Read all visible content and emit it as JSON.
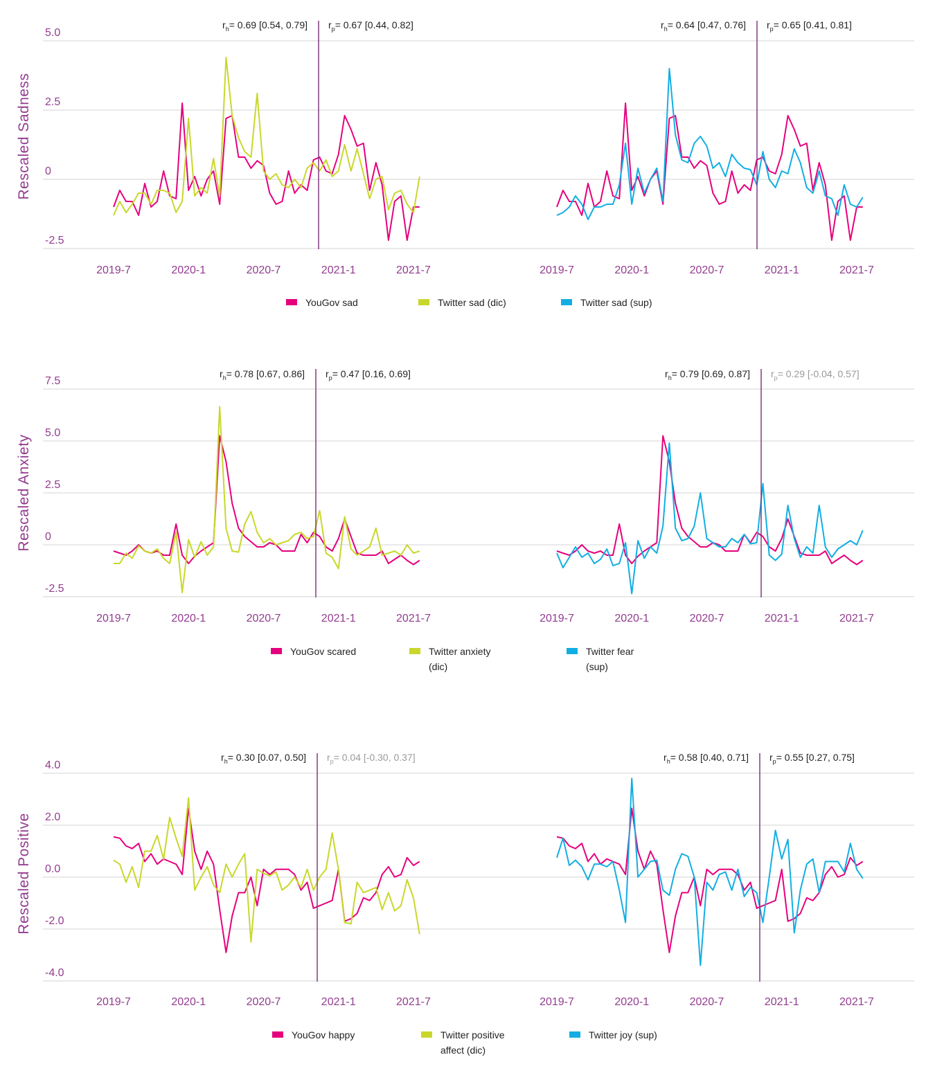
{
  "colors": {
    "yougov": "#e5007d",
    "twitter_dic": "#c9d72b",
    "twitter_sup": "#12aee3",
    "axis_text": "#923c8f",
    "split_line": "#7b2a7b",
    "annotation_text": "#222222",
    "nonsignificant_text": "#9a9a9a",
    "grid": "#dcdcdc"
  },
  "chart_data": [
    {
      "type": "line",
      "ylabel": "Rescaled Sadness",
      "ylim": [
        -2.5,
        5.0
      ],
      "yticks": [
        5.0,
        2.5,
        0,
        -2.5
      ],
      "ytick_labels": [
        "5.0",
        "2.5",
        "0",
        "-2.5"
      ],
      "xticks": [
        "2019-07-01",
        "2020-01-01",
        "2020-07-01",
        "2021-01-01",
        "2021-07-01"
      ],
      "xtick_labels": [
        "2019-7",
        "2020-1",
        "2020-7",
        "2021-1",
        "2021-7"
      ],
      "grid": true,
      "legend_position": "bottom",
      "split_date": "2020-11-09",
      "x": [
        "2019-07-01",
        "2019-07-16",
        "2019-08-01",
        "2019-08-16",
        "2019-09-01",
        "2019-09-16",
        "2019-10-01",
        "2019-10-16",
        "2019-11-01",
        "2019-11-16",
        "2019-12-01",
        "2019-12-16",
        "2020-01-01",
        "2020-01-16",
        "2020-02-01",
        "2020-02-16",
        "2020-03-01",
        "2020-03-16",
        "2020-04-01",
        "2020-04-16",
        "2020-05-01",
        "2020-05-16",
        "2020-06-01",
        "2020-06-16",
        "2020-07-01",
        "2020-07-16",
        "2020-08-01",
        "2020-08-16",
        "2020-09-01",
        "2020-09-16",
        "2020-10-01",
        "2020-10-16",
        "2020-11-01",
        "2020-11-16",
        "2020-12-01",
        "2020-12-16",
        "2021-01-01",
        "2021-01-16",
        "2021-02-01",
        "2021-02-16",
        "2021-03-01",
        "2021-03-16",
        "2021-04-01",
        "2021-04-16",
        "2021-05-01",
        "2021-05-16",
        "2021-06-01",
        "2021-06-16",
        "2021-07-01",
        "2021-07-16"
      ],
      "series": [
        {
          "name": "YouGov sad",
          "color": "#e5007d",
          "values": [
            -1.0,
            -0.4,
            -0.8,
            -0.8,
            -1.3,
            -0.15,
            -1.0,
            -0.8,
            0.3,
            -0.6,
            -0.7,
            2.75,
            -0.4,
            0.1,
            -0.6,
            0.0,
            0.3,
            -0.9,
            2.2,
            2.3,
            0.8,
            0.8,
            0.4,
            0.67,
            0.5,
            -0.5,
            -0.9,
            -0.8,
            0.3,
            -0.5,
            -0.2,
            -0.4,
            0.7,
            0.8,
            0.3,
            0.2,
            0.9,
            2.3,
            1.8,
            1.2,
            1.3,
            -0.4,
            0.6,
            -0.2,
            -2.2,
            -0.8,
            -0.6,
            -2.2,
            -1.0,
            -1.0
          ]
        },
        {
          "name": "Twitter sad (dic)",
          "color": "#c9d72b",
          "values": [
            -1.3,
            -0.8,
            -1.2,
            -0.9,
            -0.5,
            -0.5,
            -0.9,
            -0.4,
            -0.4,
            -0.5,
            -1.2,
            -0.8,
            2.2,
            -0.6,
            -0.3,
            -0.5,
            0.75,
            -0.6,
            4.4,
            2.3,
            1.5,
            1.0,
            0.8,
            3.1,
            0.3,
            0.0,
            0.2,
            -0.2,
            -0.3,
            0.0,
            -0.3,
            0.4,
            0.6,
            0.3,
            0.7,
            0.1,
            0.3,
            1.25,
            0.3,
            1.1,
            0.2,
            -0.7,
            0.0,
            0.1,
            -1.1,
            -0.5,
            -0.4,
            -0.9,
            -1.2,
            0.1
          ]
        },
        {
          "name": "Twitter sad (sup)",
          "color": "#12aee3",
          "values": [
            -1.3,
            -1.2,
            -1.0,
            -0.6,
            -0.9,
            -1.45,
            -1.0,
            -1.0,
            -0.9,
            -0.9,
            -0.2,
            1.3,
            -0.9,
            0.4,
            -0.5,
            0.0,
            0.4,
            -0.8,
            4.0,
            1.6,
            0.7,
            0.6,
            1.3,
            1.55,
            1.2,
            0.4,
            0.6,
            0.1,
            0.9,
            0.6,
            0.4,
            0.35,
            -0.2,
            1.0,
            0.0,
            -0.3,
            0.3,
            0.2,
            1.1,
            0.6,
            -0.3,
            -0.5,
            0.3,
            -0.6,
            -0.7,
            -1.3,
            -0.2,
            -0.9,
            -1.0,
            -0.65
          ]
        }
      ],
      "panels": [
        {
          "series": [
            "YouGov sad",
            "Twitter sad (dic)"
          ],
          "annotations": [
            {
              "symbol": "r",
              "sub": "h",
              "text": "= 0.69 [0.54, 0.79]",
              "significant": true
            },
            {
              "symbol": "r",
              "sub": "p",
              "text": "= 0.67 [0.44, 0.82]",
              "significant": true
            }
          ]
        },
        {
          "series": [
            "YouGov sad",
            "Twitter sad (sup)"
          ],
          "annotations": [
            {
              "symbol": "r",
              "sub": "h",
              "text": "=  0.64 [0.47, 0.76]",
              "significant": true
            },
            {
              "symbol": "r",
              "sub": "p",
              "text": "= 0.65 [0.41, 0.81]",
              "significant": true
            }
          ]
        }
      ]
    },
    {
      "type": "line",
      "ylabel": "Rescaled Anxiety",
      "ylim": [
        -2.5,
        7.5
      ],
      "yticks": [
        7.5,
        5.0,
        2.5,
        0,
        -2.5
      ],
      "ytick_labels": [
        "7.5",
        "5.0",
        "2.5",
        "0",
        "-2.5"
      ],
      "xticks": [
        "2019-07-01",
        "2020-01-01",
        "2020-07-01",
        "2021-01-01",
        "2021-07-01"
      ],
      "xtick_labels": [
        "2019-7",
        "2020-1",
        "2020-7",
        "2021-1",
        "2021-7"
      ],
      "grid": true,
      "legend_position": "bottom",
      "split_date": "2020-11-09",
      "x": [
        "2019-07-01",
        "2019-07-16",
        "2019-08-01",
        "2019-08-16",
        "2019-09-01",
        "2019-09-16",
        "2019-10-01",
        "2019-10-16",
        "2019-11-01",
        "2019-11-16",
        "2019-12-01",
        "2019-12-16",
        "2020-01-01",
        "2020-01-16",
        "2020-02-01",
        "2020-02-16",
        "2020-03-01",
        "2020-03-16",
        "2020-04-01",
        "2020-04-16",
        "2020-05-01",
        "2020-05-16",
        "2020-06-01",
        "2020-06-16",
        "2020-07-01",
        "2020-07-16",
        "2020-08-01",
        "2020-08-16",
        "2020-09-01",
        "2020-09-16",
        "2020-10-01",
        "2020-10-16",
        "2020-11-01",
        "2020-11-16",
        "2020-12-01",
        "2020-12-16",
        "2021-01-01",
        "2021-01-16",
        "2021-02-01",
        "2021-02-16",
        "2021-03-01",
        "2021-03-16",
        "2021-04-01",
        "2021-04-16",
        "2021-05-01",
        "2021-05-16",
        "2021-06-01",
        "2021-06-16",
        "2021-07-01",
        "2021-07-16"
      ],
      "series": [
        {
          "name": "YouGov scared",
          "color": "#e5007d",
          "values": [
            -0.3,
            -0.4,
            -0.5,
            -0.3,
            0.0,
            -0.3,
            -0.4,
            -0.3,
            -0.5,
            -0.5,
            1.0,
            -0.5,
            -0.9,
            -0.55,
            -0.3,
            -0.1,
            0.1,
            5.25,
            4.0,
            2.0,
            0.8,
            0.4,
            0.15,
            -0.1,
            -0.1,
            0.1,
            0.0,
            -0.3,
            -0.3,
            -0.3,
            0.5,
            0.1,
            0.6,
            0.4,
            -0.1,
            -0.3,
            0.3,
            1.25,
            0.4,
            -0.4,
            -0.5,
            -0.5,
            -0.5,
            -0.3,
            -0.9,
            -0.7,
            -0.5,
            -0.75,
            -0.95,
            -0.75
          ]
        },
        {
          "name": "Twitter anxiety (dic)",
          "color": "#c9d72b",
          "values": [
            -0.9,
            -0.9,
            -0.4,
            -0.65,
            -0.05,
            -0.3,
            -0.4,
            -0.2,
            -0.65,
            -0.9,
            0.6,
            -2.3,
            0.25,
            -0.6,
            0.15,
            -0.5,
            -0.1,
            6.65,
            0.8,
            -0.3,
            -0.35,
            1.0,
            1.6,
            0.6,
            0.1,
            0.3,
            0.0,
            0.1,
            0.2,
            0.5,
            0.6,
            0.3,
            0.4,
            1.65,
            -0.4,
            -0.6,
            -1.15,
            1.35,
            -0.2,
            -0.5,
            -0.3,
            -0.1,
            0.8,
            -0.5,
            -0.4,
            -0.3,
            -0.5,
            0.0,
            -0.4,
            -0.3
          ]
        },
        {
          "name": "Twitter fear (sup)",
          "color": "#12aee3",
          "values": [
            -0.4,
            -1.1,
            -0.6,
            -0.1,
            -0.6,
            -0.4,
            -0.9,
            -0.7,
            -0.2,
            -1.0,
            -0.9,
            0.1,
            -2.35,
            0.2,
            -0.65,
            -0.1,
            -0.4,
            0.9,
            4.9,
            0.8,
            0.2,
            0.3,
            0.9,
            2.5,
            0.3,
            0.1,
            -0.1,
            -0.1,
            0.3,
            0.1,
            0.5,
            0.05,
            0.1,
            2.95,
            -0.5,
            -0.75,
            -0.45,
            1.9,
            0.3,
            -0.6,
            -0.1,
            -0.4,
            1.9,
            -0.1,
            -0.6,
            -0.2,
            0.0,
            0.2,
            0.0,
            0.7
          ]
        }
      ],
      "panels": [
        {
          "series": [
            "YouGov scared",
            "Twitter anxiety (dic)"
          ],
          "annotations": [
            {
              "symbol": "r",
              "sub": "h",
              "text": "= 0.78 [0.67, 0.86]",
              "significant": true
            },
            {
              "symbol": "r",
              "sub": "p",
              "text": "= 0.47 [0.16, 0.69]",
              "significant": true
            }
          ]
        },
        {
          "series": [
            "YouGov scared",
            "Twitter fear (sup)"
          ],
          "annotations": [
            {
              "symbol": "r",
              "sub": "h",
              "text": "=  0.79 [0.69, 0.87]",
              "significant": true
            },
            {
              "symbol": "r",
              "sub": "p",
              "text": "= 0.29 [-0.04, 0.57]",
              "significant": false
            }
          ]
        }
      ]
    },
    {
      "type": "line",
      "ylabel": "Rescaled Positive",
      "ylim": [
        -4.0,
        4.0
      ],
      "yticks": [
        4.0,
        2.0,
        0.0,
        -2.0,
        -4.0
      ],
      "ytick_labels": [
        "4.0",
        "2.0",
        "0.0",
        "-2.0",
        "-4.0"
      ],
      "xticks": [
        "2019-07-01",
        "2020-01-01",
        "2020-07-01",
        "2021-01-01",
        "2021-07-01"
      ],
      "xtick_labels": [
        "2019-7",
        "2020-1",
        "2020-7",
        "2021-1",
        "2021-7"
      ],
      "grid": true,
      "legend_position": "bottom",
      "split_date": "2020-11-09",
      "x": [
        "2019-07-01",
        "2019-07-16",
        "2019-08-01",
        "2019-08-16",
        "2019-09-01",
        "2019-09-16",
        "2019-10-01",
        "2019-10-16",
        "2019-11-01",
        "2019-11-16",
        "2019-12-01",
        "2019-12-16",
        "2020-01-01",
        "2020-01-16",
        "2020-02-01",
        "2020-02-16",
        "2020-03-01",
        "2020-03-16",
        "2020-04-01",
        "2020-04-16",
        "2020-05-01",
        "2020-05-16",
        "2020-06-01",
        "2020-06-16",
        "2020-07-01",
        "2020-07-16",
        "2020-08-01",
        "2020-08-16",
        "2020-09-01",
        "2020-09-16",
        "2020-10-01",
        "2020-10-16",
        "2020-11-01",
        "2020-11-16",
        "2020-12-01",
        "2020-12-16",
        "2021-01-01",
        "2021-01-16",
        "2021-02-01",
        "2021-02-16",
        "2021-03-01",
        "2021-03-16",
        "2021-04-01",
        "2021-04-16",
        "2021-05-01",
        "2021-05-16",
        "2021-06-01",
        "2021-06-16",
        "2021-07-01",
        "2021-07-16"
      ],
      "series": [
        {
          "name": "YouGov happy",
          "color": "#e5007d",
          "values": [
            1.55,
            1.5,
            1.2,
            1.1,
            1.3,
            0.6,
            0.9,
            0.5,
            0.7,
            0.6,
            0.5,
            0.1,
            2.65,
            1.0,
            0.3,
            1.0,
            0.5,
            -1.25,
            -2.9,
            -1.5,
            -0.6,
            -0.6,
            0.0,
            -1.1,
            0.3,
            0.1,
            0.3,
            0.3,
            0.3,
            0.1,
            -0.5,
            -0.2,
            -1.2,
            -1.1,
            -1.0,
            -0.9,
            0.3,
            -1.7,
            -1.6,
            -1.4,
            -0.8,
            -0.9,
            -0.6,
            0.1,
            0.4,
            0.0,
            0.1,
            0.75,
            0.45,
            0.6
          ]
        },
        {
          "name": "Twitter positive affect (dic)",
          "color": "#c9d72b",
          "values": [
            0.65,
            0.5,
            -0.2,
            0.4,
            -0.4,
            1.0,
            1.0,
            1.6,
            0.7,
            2.3,
            1.5,
            0.8,
            3.05,
            -0.5,
            0.0,
            0.4,
            -0.3,
            -0.6,
            0.5,
            0.0,
            0.5,
            0.9,
            -2.5,
            0.3,
            0.15,
            0.05,
            0.2,
            -0.5,
            -0.3,
            0.0,
            -0.4,
            0.3,
            -0.5,
            0.0,
            0.3,
            1.7,
            0.3,
            -1.75,
            -1.8,
            -0.2,
            -0.6,
            -0.5,
            -0.4,
            -1.25,
            -0.6,
            -1.3,
            -1.1,
            -0.1,
            -0.8,
            -2.2
          ]
        },
        {
          "name": "Twitter joy (sup)",
          "color": "#12aee3",
          "values": [
            0.75,
            1.5,
            0.45,
            0.65,
            0.4,
            -0.1,
            0.5,
            0.5,
            0.4,
            0.6,
            -0.5,
            -1.75,
            3.8,
            0.0,
            0.3,
            0.6,
            0.65,
            -0.5,
            -0.7,
            0.3,
            0.9,
            0.8,
            0.0,
            -3.4,
            -0.2,
            -0.5,
            0.1,
            0.2,
            -0.5,
            0.3,
            -0.75,
            -0.4,
            -0.6,
            -1.75,
            0.0,
            1.8,
            0.7,
            1.45,
            -2.15,
            -0.5,
            0.5,
            0.7,
            -0.6,
            0.6,
            0.6,
            0.6,
            0.2,
            1.3,
            0.3,
            -0.05
          ]
        }
      ],
      "panels": [
        {
          "series": [
            "YouGov happy",
            "Twitter positive affect (dic)"
          ],
          "annotations": [
            {
              "symbol": "r",
              "sub": "h",
              "text": "= 0.30 [0.07, 0.50]",
              "significant": true
            },
            {
              "symbol": "r",
              "sub": "p",
              "text": "= 0.04 [-0.30, 0.37]",
              "significant": false
            }
          ]
        },
        {
          "series": [
            "YouGov happy",
            "Twitter joy (sup)"
          ],
          "annotations": [
            {
              "symbol": "r",
              "sub": "h",
              "text": "=  0.58 [0.40, 0.71]",
              "significant": true
            },
            {
              "symbol": "r",
              "sub": "p",
              "text": "= 0.55 [0.27, 0.75]",
              "significant": true
            }
          ]
        }
      ]
    }
  ]
}
